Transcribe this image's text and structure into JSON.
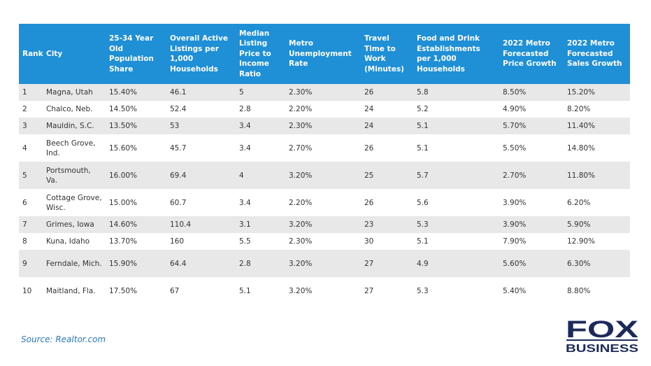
{
  "chart_data": {
    "type": "table",
    "columns": [
      "Rank",
      "City",
      "25-34 Year Old Population Share",
      "Overall Active Listings per 1,000 Households",
      "Median Listing Price to Income Ratio",
      "Metro Unemployment Rate",
      "Travel Time to Work (Minutes)",
      "Food and Drink Establishments per 1,000 Households",
      "2022 Metro Forecasted Price Growth",
      "2022 Metro Forecasted Sales Growth"
    ],
    "rows": [
      [
        "1",
        "Magna, Utah",
        "15.40%",
        "46.1",
        "5",
        "2.30%",
        "26",
        "5.8",
        "8.50%",
        "15.20%"
      ],
      [
        "2",
        "Chalco, Neb.",
        "14.50%",
        "52.4",
        "2.8",
        "2.20%",
        "24",
        "5.2",
        "4.90%",
        "8.20%"
      ],
      [
        "3",
        "Mauldin, S.C.",
        "13.50%",
        "53",
        "3.4",
        "2.30%",
        "24",
        "5.1",
        "5.70%",
        "11.40%"
      ],
      [
        "4",
        "Beech Grove, Ind.",
        "15.60%",
        "45.7",
        "3.4",
        "2.70%",
        "26",
        "5.1",
        "5.50%",
        "14.80%"
      ],
      [
        "5",
        "Portsmouth, Va.",
        "16.00%",
        "69.4",
        "4",
        "3.20%",
        "25",
        "5.7",
        "2.70%",
        "11.80%"
      ],
      [
        "6",
        "Cottage Grove, Wisc.",
        "15.00%",
        "60.7",
        "3.4",
        "2.20%",
        "26",
        "5.6",
        "3.90%",
        "6.20%"
      ],
      [
        "7",
        "Grimes, Iowa",
        "14.60%",
        "110.4",
        "3.1",
        "3.20%",
        "23",
        "5.3",
        "3.90%",
        "5.90%"
      ],
      [
        "8",
        "Kuna, Idaho",
        "13.70%",
        "160",
        "5.5",
        "2.30%",
        "30",
        "5.1",
        "7.90%",
        "12.90%"
      ],
      [
        "9",
        "Ferndale, Mich.",
        "15.90%",
        "64.4",
        "2.8",
        "3.20%",
        "27",
        "4.9",
        "5.60%",
        "6.30%"
      ],
      [
        "10",
        "Maitland, Fla.",
        "17.50%",
        "67",
        "5.1",
        "3.20%",
        "27",
        "5.3",
        "5.40%",
        "8.80%"
      ]
    ]
  },
  "source": "Source: Realtor.com",
  "logo": {
    "top": "FOX",
    "bottom": "BUSINESS"
  },
  "colors": {
    "header_bg": "#1f8fd6",
    "header_text": "#ffffff",
    "stripe": "#e8e8e8",
    "source_text": "#2a79b8",
    "logo_navy": "#1c2a5a"
  }
}
